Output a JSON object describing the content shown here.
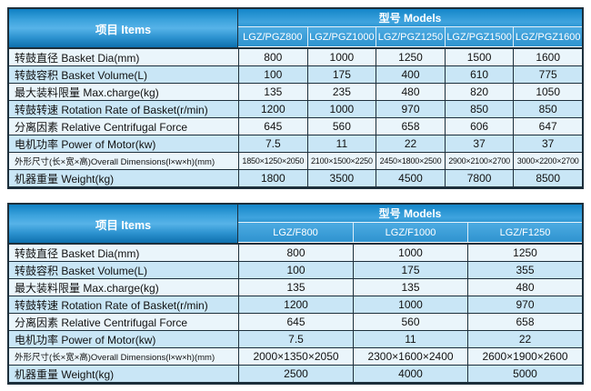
{
  "colors": {
    "header_gradient_top": "#0f80c3",
    "header_gradient_light": "#57b3e8",
    "header_gradient_bottom": "#0e70ae",
    "model_row_blue": "#3a9dd8",
    "row_light": "#eaf5fb",
    "row_blue": "#c9e6f6",
    "grid_line": "#1d2f3b",
    "header_text": "#ffffff",
    "cell_text": "#111111",
    "page_background": "#ffffff"
  },
  "tables": [
    {
      "items_header": "项目 Items",
      "models_header": "型号 Models",
      "columns": [
        "LGZ/PGZ800",
        "LGZ/PGZ1000",
        "LGZ/PGZ1250",
        "LGZ/PGZ1500",
        "LGZ/PGZ1600"
      ],
      "rows": [
        {
          "label": "转鼓直径 Basket Dia(mm)",
          "values": [
            "800",
            "1000",
            "1250",
            "1500",
            "1600"
          ]
        },
        {
          "label": "转鼓容积 Basket Volume(L)",
          "values": [
            "100",
            "175",
            "400",
            "610",
            "775"
          ]
        },
        {
          "label": "最大装料限量 Max.charge(kg)",
          "values": [
            "135",
            "235",
            "480",
            "820",
            "1050"
          ]
        },
        {
          "label": "转鼓转速 Rotation Rate of Basket(r/min)",
          "values": [
            "1200",
            "1000",
            "970",
            "850",
            "850"
          ]
        },
        {
          "label": "分离因素 Relative Centrifugal Force",
          "values": [
            "645",
            "560",
            "658",
            "606",
            "647"
          ]
        },
        {
          "label": "电机功率 Power of Motor(kw)",
          "values": [
            "7.5",
            "11",
            "22",
            "37",
            "37"
          ]
        },
        {
          "label": "外形尺寸(长×宽×高)Overall Dimensions(l×w×h)(mm)",
          "values": [
            "1850×1250×2050",
            "2100×1500×2250",
            "2450×1800×2500",
            "2900×2100×2700",
            "3000×2200×2700"
          ]
        },
        {
          "label": "机器重量 Weight(kg)",
          "values": [
            "1800",
            "3500",
            "4500",
            "7800",
            "8500"
          ]
        }
      ]
    },
    {
      "items_header": "项目 Items",
      "models_header": "型号 Models",
      "columns": [
        "LGZ/F800",
        "LGZ/F1000",
        "LGZ/F1250"
      ],
      "rows": [
        {
          "label": "转鼓直径 Basket Dia(mm)",
          "values": [
            "800",
            "1000",
            "1250"
          ]
        },
        {
          "label": "转鼓容积 Basket Volume(L)",
          "values": [
            "100",
            "175",
            "355"
          ]
        },
        {
          "label": "最大装料限量 Max.charge(kg)",
          "values": [
            "135",
            "135",
            "480"
          ]
        },
        {
          "label": "转鼓转速 Rotation Rate of Basket(r/min)",
          "values": [
            "1200",
            "1000",
            "970"
          ]
        },
        {
          "label": "分离因素 Relative Centrifugal Force",
          "values": [
            "645",
            "560",
            "658"
          ]
        },
        {
          "label": "电机功率 Power of Motor(kw)",
          "values": [
            "7.5",
            "11",
            "22"
          ]
        },
        {
          "label": "外形尺寸(长×宽×高)Overall Dimensions(l×w×h)(mm)",
          "values": [
            "2000×1350×2050",
            "2300×1600×2400",
            "2600×1900×2600"
          ]
        },
        {
          "label": "机器重量 Weight(kg)",
          "values": [
            "2500",
            "4000",
            "5000"
          ]
        }
      ]
    }
  ],
  "chart_data": [
    {
      "type": "table",
      "title": "型号 Models",
      "columns": [
        "项目 Items",
        "LGZ/PGZ800",
        "LGZ/PGZ1000",
        "LGZ/PGZ1250",
        "LGZ/PGZ1500",
        "LGZ/PGZ1600"
      ],
      "rows": [
        [
          "转鼓直径 Basket Dia(mm)",
          "800",
          "1000",
          "1250",
          "1500",
          "1600"
        ],
        [
          "转鼓容积 Basket Volume(L)",
          "100",
          "175",
          "400",
          "610",
          "775"
        ],
        [
          "最大装料限量 Max.charge(kg)",
          "135",
          "235",
          "480",
          "820",
          "1050"
        ],
        [
          "转鼓转速 Rotation Rate of Basket(r/min)",
          "1200",
          "1000",
          "970",
          "850",
          "850"
        ],
        [
          "分离因素 Relative Centrifugal Force",
          "645",
          "560",
          "658",
          "606",
          "647"
        ],
        [
          "电机功率 Power of Motor(kw)",
          "7.5",
          "11",
          "22",
          "37",
          "37"
        ],
        [
          "外形尺寸(长×宽×高)Overall Dimensions(l×w×h)(mm)",
          "1850×1250×2050",
          "2100×1500×2250",
          "2450×1800×2500",
          "2900×2100×2700",
          "3000×2200×2700"
        ],
        [
          "机器重量 Weight(kg)",
          "1800",
          "3500",
          "4500",
          "7800",
          "8500"
        ]
      ]
    },
    {
      "type": "table",
      "title": "型号 Models",
      "columns": [
        "项目 Items",
        "LGZ/F800",
        "LGZ/F1000",
        "LGZ/F1250"
      ],
      "rows": [
        [
          "转鼓直径 Basket Dia(mm)",
          "800",
          "1000",
          "1250"
        ],
        [
          "转鼓容积 Basket Volume(L)",
          "100",
          "175",
          "355"
        ],
        [
          "最大装料限量 Max.charge(kg)",
          "135",
          "135",
          "480"
        ],
        [
          "转鼓转速 Rotation Rate of Basket(r/min)",
          "1200",
          "1000",
          "970"
        ],
        [
          "分离因素 Relative Centrifugal Force",
          "645",
          "560",
          "658"
        ],
        [
          "电机功率 Power of Motor(kw)",
          "7.5",
          "11",
          "22"
        ],
        [
          "外形尺寸(长×宽×高)Overall Dimensions(l×w×h)(mm)",
          "2000×1350×2050",
          "2300×1600×2400",
          "2600×1900×2600"
        ],
        [
          "机器重量 Weight(kg)",
          "2500",
          "4000",
          "5000"
        ]
      ]
    }
  ]
}
